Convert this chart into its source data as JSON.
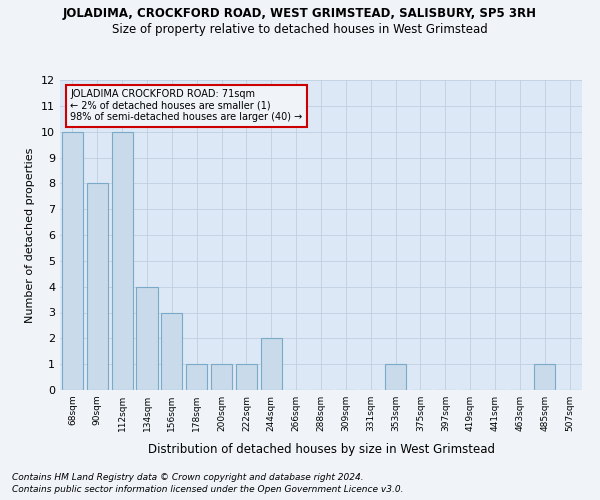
{
  "title": "JOLADIMA, CROCKFORD ROAD, WEST GRIMSTEAD, SALISBURY, SP5 3RH",
  "subtitle": "Size of property relative to detached houses in West Grimstead",
  "xlabel": "Distribution of detached houses by size in West Grimstead",
  "ylabel": "Number of detached properties",
  "categories": [
    "68sqm",
    "90sqm",
    "112sqm",
    "134sqm",
    "156sqm",
    "178sqm",
    "200sqm",
    "222sqm",
    "244sqm",
    "266sqm",
    "288sqm",
    "309sqm",
    "331sqm",
    "353sqm",
    "375sqm",
    "397sqm",
    "419sqm",
    "441sqm",
    "463sqm",
    "485sqm",
    "507sqm"
  ],
  "values": [
    10,
    8,
    10,
    4,
    3,
    1,
    1,
    1,
    2,
    0,
    0,
    0,
    0,
    1,
    0,
    0,
    0,
    0,
    0,
    1,
    0
  ],
  "bar_color": "#c9daea",
  "bar_edgecolor": "#7aaac8",
  "annotation_line1": "JOLADIMA CROCKFORD ROAD: 71sqm",
  "annotation_line2": "← 2% of detached houses are smaller (1)",
  "annotation_line3": "98% of semi-detached houses are larger (40) →",
  "annotation_box_edgecolor": "#cc0000",
  "ylim": [
    0,
    12
  ],
  "yticks": [
    0,
    1,
    2,
    3,
    4,
    5,
    6,
    7,
    8,
    9,
    10,
    11,
    12
  ],
  "footer1": "Contains HM Land Registry data © Crown copyright and database right 2024.",
  "footer2": "Contains public sector information licensed under the Open Government Licence v3.0.",
  "fig_bg_color": "#f0f4f8",
  "plot_bg_color": "#dce8f5",
  "grid_color": "#c0cfe0"
}
